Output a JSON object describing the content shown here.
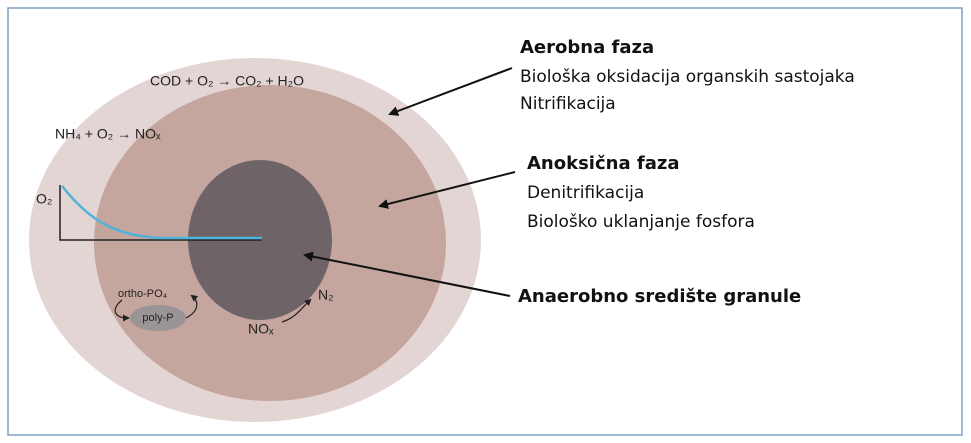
{
  "zones": [
    {
      "title": "Aerobna faza",
      "lines": [
        "Biološka oksidacija organskih sastojaka",
        "Nitrifikacija"
      ]
    },
    {
      "title": "Anoksična faza",
      "lines": [
        "Denitrifikacija",
        "Biološko uklanjanje fosfora"
      ]
    },
    {
      "title": "Anaerobno središte granule",
      "lines": []
    }
  ],
  "reactions": [
    "COD + O₂ → CO₂ + H₂O",
    "NH₄ + O₂ → NOₓ"
  ],
  "labels": {
    "oxygen": "O₂",
    "ortho": "ortho-PO₄",
    "poly": "poly-P",
    "nitrate": "NOₓ",
    "nitrogen": "N₂"
  }
}
